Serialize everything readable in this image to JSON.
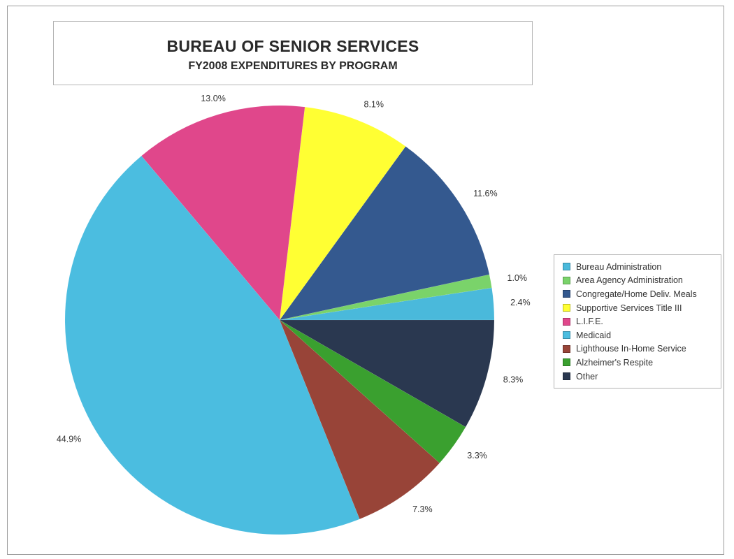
{
  "chart_data": {
    "type": "pie",
    "title": "BUREAU OF SENIOR SERVICES",
    "subtitle": "FY2008 EXPENDITURES BY PROGRAM",
    "legend_position": "right",
    "slices": [
      {
        "label": "Bureau Administration",
        "value": 2.4,
        "value_label": "2.4%",
        "color": "#4ab9db"
      },
      {
        "label": "Area Agency Administration",
        "value": 1.0,
        "value_label": "1.0%",
        "color": "#7ad36a"
      },
      {
        "label": "Congregate/Home Deliv. Meals",
        "value": 11.6,
        "value_label": "11.6%",
        "color": "#34598f"
      },
      {
        "label": "Supportive Services Title III",
        "value": 8.1,
        "value_label": "8.1%",
        "color": "#ffff33"
      },
      {
        "label": "L.I.F.E.",
        "value": 13.0,
        "value_label": "13.0%",
        "color": "#e0478b"
      },
      {
        "label": "Medicaid",
        "value": 44.9,
        "value_label": "44.9%",
        "color": "#4bbde0"
      },
      {
        "label": "Lighthouse In-Home Service",
        "value": 7.3,
        "value_label": "7.3%",
        "color": "#984438"
      },
      {
        "label": "Alzheimer's Respite",
        "value": 3.3,
        "value_label": "3.3%",
        "color": "#3aa02f"
      },
      {
        "label": "Other",
        "value": 8.3,
        "value_label": "8.3%",
        "color": "#2a3850"
      }
    ]
  }
}
